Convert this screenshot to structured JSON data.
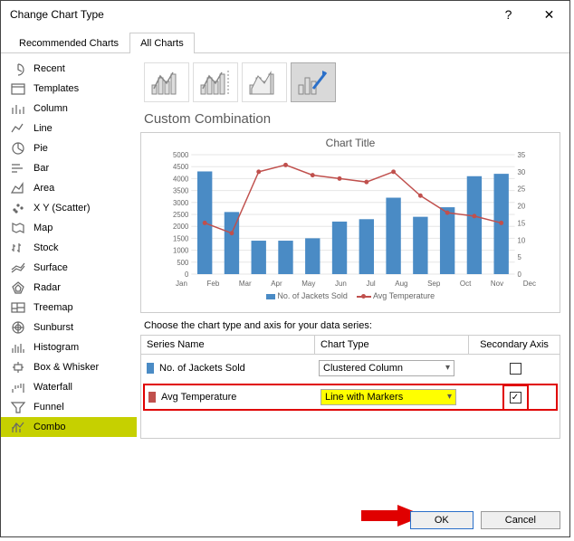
{
  "dialog": {
    "title": "Change Chart Type"
  },
  "tabs": {
    "recommended": "Recommended Charts",
    "all": "All Charts",
    "active": "all"
  },
  "sidebar": {
    "items": [
      {
        "key": "recent",
        "label": "Recent"
      },
      {
        "key": "templates",
        "label": "Templates"
      },
      {
        "key": "column",
        "label": "Column"
      },
      {
        "key": "line",
        "label": "Line"
      },
      {
        "key": "pie",
        "label": "Pie"
      },
      {
        "key": "bar",
        "label": "Bar"
      },
      {
        "key": "area",
        "label": "Area"
      },
      {
        "key": "xy",
        "label": "X Y (Scatter)"
      },
      {
        "key": "map",
        "label": "Map"
      },
      {
        "key": "stock",
        "label": "Stock"
      },
      {
        "key": "surface",
        "label": "Surface"
      },
      {
        "key": "radar",
        "label": "Radar"
      },
      {
        "key": "treemap",
        "label": "Treemap"
      },
      {
        "key": "sunburst",
        "label": "Sunburst"
      },
      {
        "key": "histogram",
        "label": "Histogram"
      },
      {
        "key": "box",
        "label": "Box & Whisker"
      },
      {
        "key": "waterfall",
        "label": "Waterfall"
      },
      {
        "key": "funnel",
        "label": "Funnel"
      },
      {
        "key": "combo",
        "label": "Combo"
      }
    ],
    "selected": "combo"
  },
  "main": {
    "heading": "Custom Combination",
    "chart": {
      "title": "Chart Title",
      "categories": [
        "Jan",
        "Feb",
        "Mar",
        "Apr",
        "May",
        "Jun",
        "Jul",
        "Aug",
        "Sep",
        "Oct",
        "Nov",
        "Dec"
      ],
      "bars": [
        4300,
        2600,
        1400,
        1400,
        1500,
        2200,
        2300,
        3200,
        2400,
        2800,
        4100,
        4200
      ],
      "line": [
        15,
        12,
        30,
        32,
        29,
        28,
        27,
        30,
        23,
        18,
        17,
        15
      ],
      "y_left": {
        "min": 0,
        "max": 5000,
        "step": 500
      },
      "y_right": {
        "min": 0,
        "max": 35,
        "step": 5
      },
      "bar_color": "#4a8bc5",
      "line_color": "#c0504d",
      "grid_color": "#e6e6e6",
      "series_legend": {
        "bars": "No. of Jackets Sold",
        "line": "Avg Temperature"
      }
    },
    "series_label": "Choose the chart type and axis for your data series:",
    "table": {
      "head": {
        "name": "Series Name",
        "type": "Chart Type",
        "axis": "Secondary Axis"
      },
      "rows": [
        {
          "swatch": "#4a8bc5",
          "name": "No. of Jackets Sold",
          "type": "Clustered Column",
          "secondary": false,
          "highlight": false
        },
        {
          "swatch": "#c0504d",
          "name": "Avg Temperature",
          "type": "Line with Markers",
          "secondary": true,
          "highlight": true
        }
      ]
    }
  },
  "footer": {
    "ok": "OK",
    "cancel": "Cancel"
  }
}
